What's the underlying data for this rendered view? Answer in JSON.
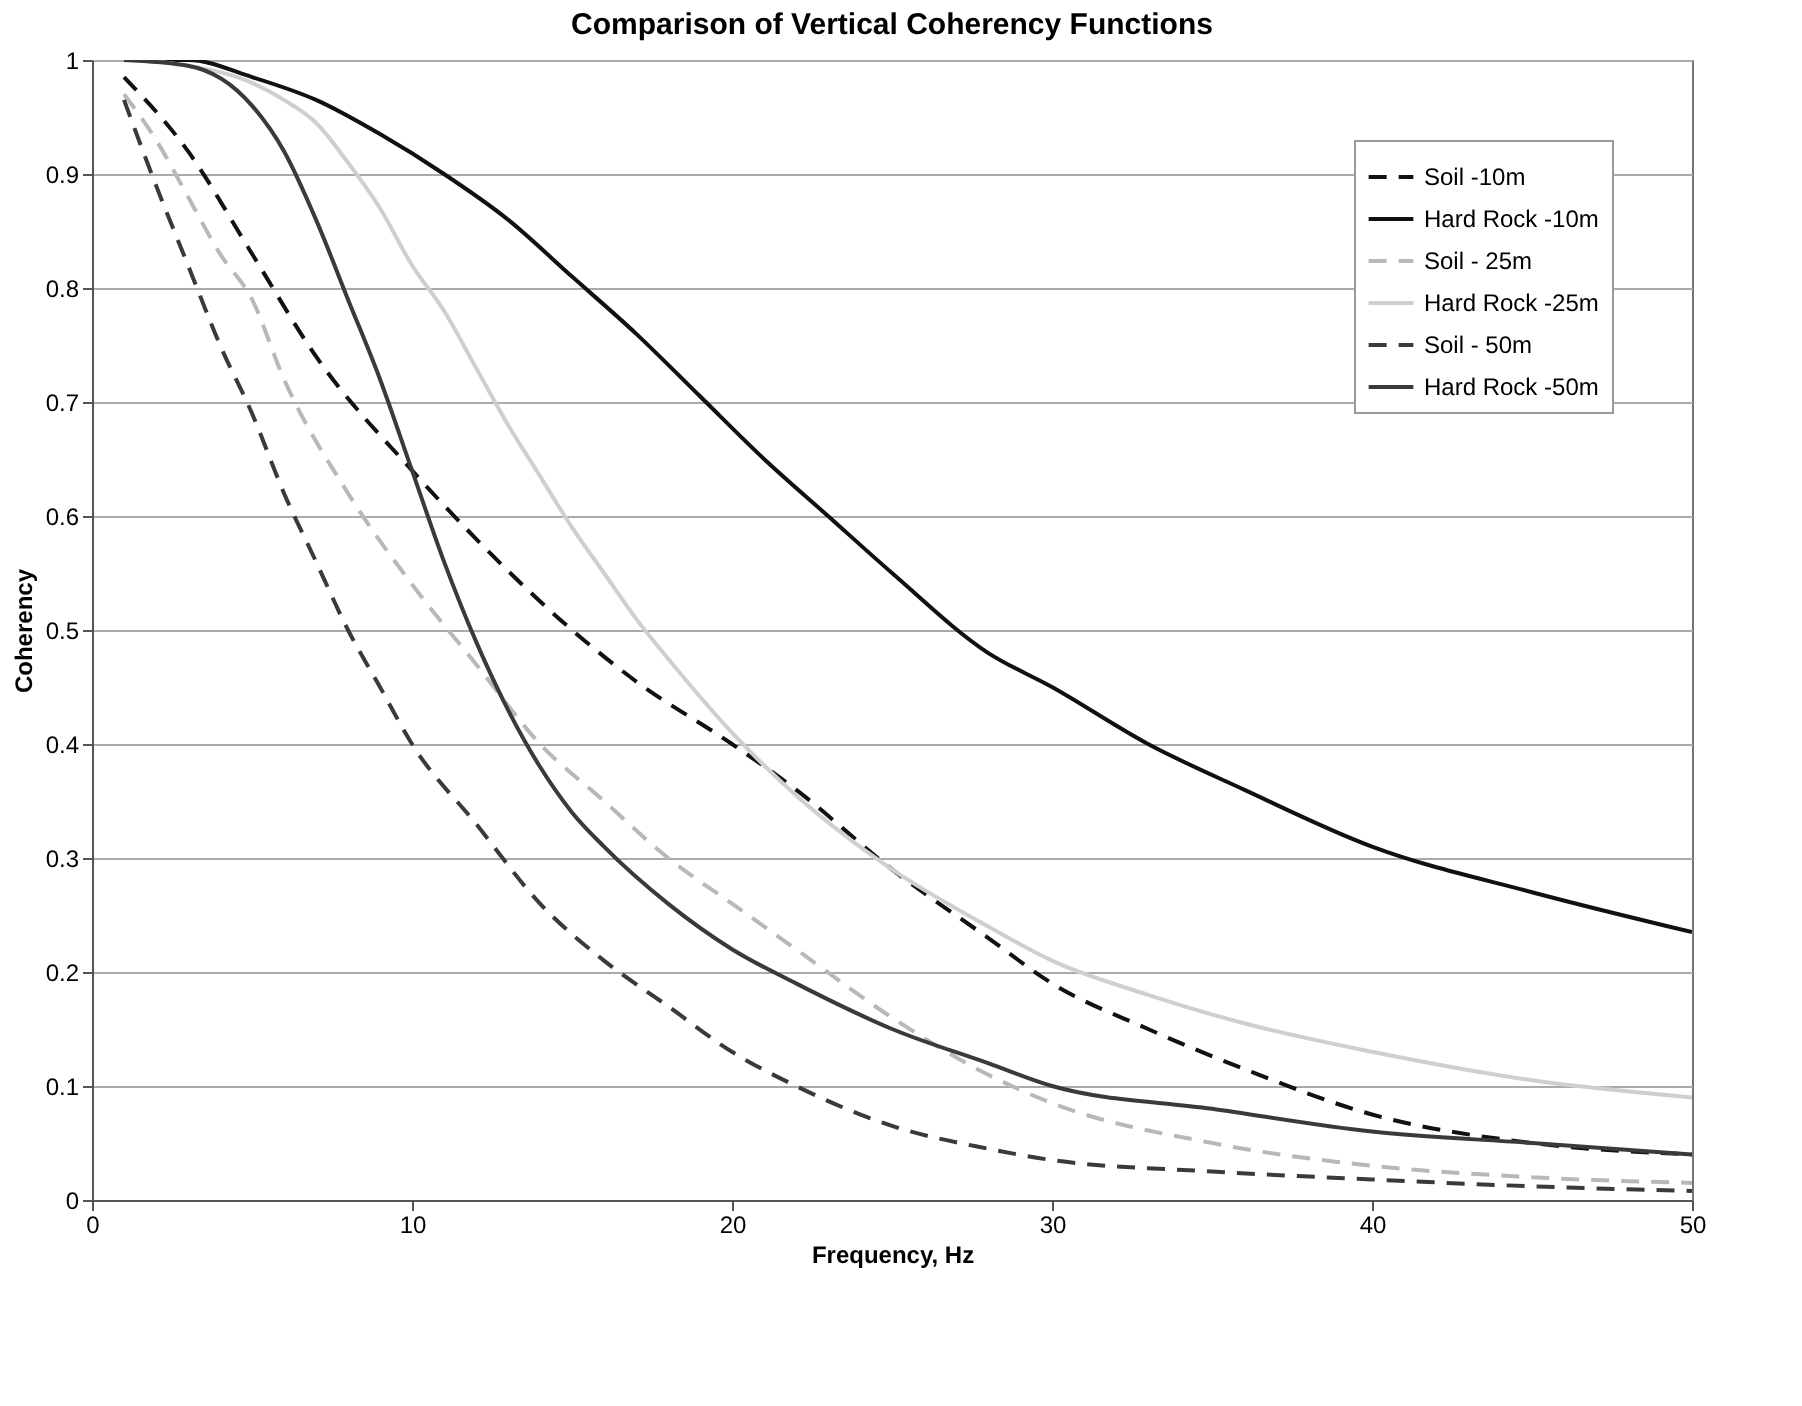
{
  "chart_data": {
    "type": "line",
    "title": "Comparison of Vertical Coherency Functions",
    "xlabel": "Frequency, Hz",
    "ylabel": "Coherency",
    "xlim": [
      0,
      50
    ],
    "xticks": [
      0,
      10,
      20,
      30,
      40,
      50
    ],
    "ylim": [
      0,
      1
    ],
    "yticks": [
      0,
      0.1,
      0.2,
      0.3,
      0.4,
      0.5,
      0.6,
      0.7,
      0.8,
      0.9,
      1
    ],
    "grid": "y",
    "legend": "top right",
    "marker": "none",
    "series": [
      {
        "name": "Soil -10m",
        "color": "#111111",
        "line_style": "dashed",
        "x": [
          1,
          3,
          5,
          7,
          10,
          12,
          15,
          17,
          20,
          22,
          25,
          28,
          30,
          33,
          36,
          40,
          45,
          50
        ],
        "values": [
          0.985,
          0.92,
          0.83,
          0.74,
          0.64,
          0.58,
          0.5,
          0.455,
          0.4,
          0.36,
          0.29,
          0.23,
          0.19,
          0.15,
          0.115,
          0.075,
          0.05,
          0.04
        ]
      },
      {
        "name": "Hard Rock -10m",
        "color": "#111111",
        "line_style": "solid",
        "x": [
          1,
          3,
          5,
          7,
          9,
          11,
          13,
          15,
          17,
          19,
          21,
          23,
          25,
          28,
          30,
          33,
          36,
          40,
          45,
          50
        ],
        "values": [
          1.0,
          1.0,
          0.985,
          0.965,
          0.935,
          0.9,
          0.86,
          0.81,
          0.76,
          0.705,
          0.65,
          0.6,
          0.55,
          0.48,
          0.45,
          0.4,
          0.36,
          0.31,
          0.27,
          0.235
        ]
      },
      {
        "name": "Soil - 25m",
        "color": "#b8b8b8",
        "line_style": "dashed",
        "x": [
          1,
          2,
          3,
          4,
          5,
          6,
          8,
          10,
          12,
          14,
          16,
          18,
          20,
          22,
          25,
          28,
          30,
          35,
          40,
          45,
          50
        ],
        "values": [
          0.97,
          0.93,
          0.88,
          0.83,
          0.79,
          0.72,
          0.62,
          0.54,
          0.47,
          0.4,
          0.35,
          0.3,
          0.26,
          0.22,
          0.16,
          0.11,
          0.085,
          0.05,
          0.03,
          0.02,
          0.015
        ]
      },
      {
        "name": "Hard Rock -25m",
        "color": "#cfcfcf",
        "line_style": "solid",
        "x": [
          1,
          3,
          5,
          6,
          7,
          8,
          9,
          10,
          11,
          12,
          13,
          14,
          15,
          16,
          17,
          18,
          20,
          22,
          25,
          28,
          30,
          33,
          36,
          40,
          45,
          50
        ],
        "values": [
          1.0,
          0.995,
          0.98,
          0.965,
          0.945,
          0.91,
          0.87,
          0.82,
          0.78,
          0.73,
          0.68,
          0.635,
          0.59,
          0.55,
          0.51,
          0.475,
          0.41,
          0.355,
          0.29,
          0.24,
          0.21,
          0.18,
          0.155,
          0.13,
          0.105,
          0.09
        ]
      },
      {
        "name": "Soil - 50m",
        "color": "#3a3a3a",
        "line_style": "dashed",
        "x": [
          1,
          2,
          3,
          4,
          5,
          6,
          7,
          8,
          9,
          10,
          12,
          14,
          16,
          18,
          20,
          22,
          25,
          28,
          30,
          35,
          40,
          45,
          50
        ],
        "values": [
          0.965,
          0.89,
          0.82,
          0.75,
          0.69,
          0.62,
          0.56,
          0.5,
          0.45,
          0.4,
          0.33,
          0.26,
          0.21,
          0.17,
          0.13,
          0.1,
          0.065,
          0.045,
          0.035,
          0.025,
          0.018,
          0.012,
          0.008
        ]
      },
      {
        "name": "Hard Rock -50m",
        "color": "#3a3a3a",
        "line_style": "solid",
        "x": [
          1,
          3,
          5,
          6,
          7,
          8,
          9,
          10,
          11,
          12,
          13,
          14,
          15,
          16,
          18,
          20,
          22,
          25,
          28,
          30,
          35,
          40,
          45,
          50
        ],
        "values": [
          1.0,
          0.995,
          0.96,
          0.92,
          0.86,
          0.79,
          0.72,
          0.64,
          0.56,
          0.49,
          0.43,
          0.38,
          0.34,
          0.31,
          0.26,
          0.22,
          0.19,
          0.15,
          0.12,
          0.1,
          0.08,
          0.06,
          0.05,
          0.04
        ]
      }
    ]
  }
}
